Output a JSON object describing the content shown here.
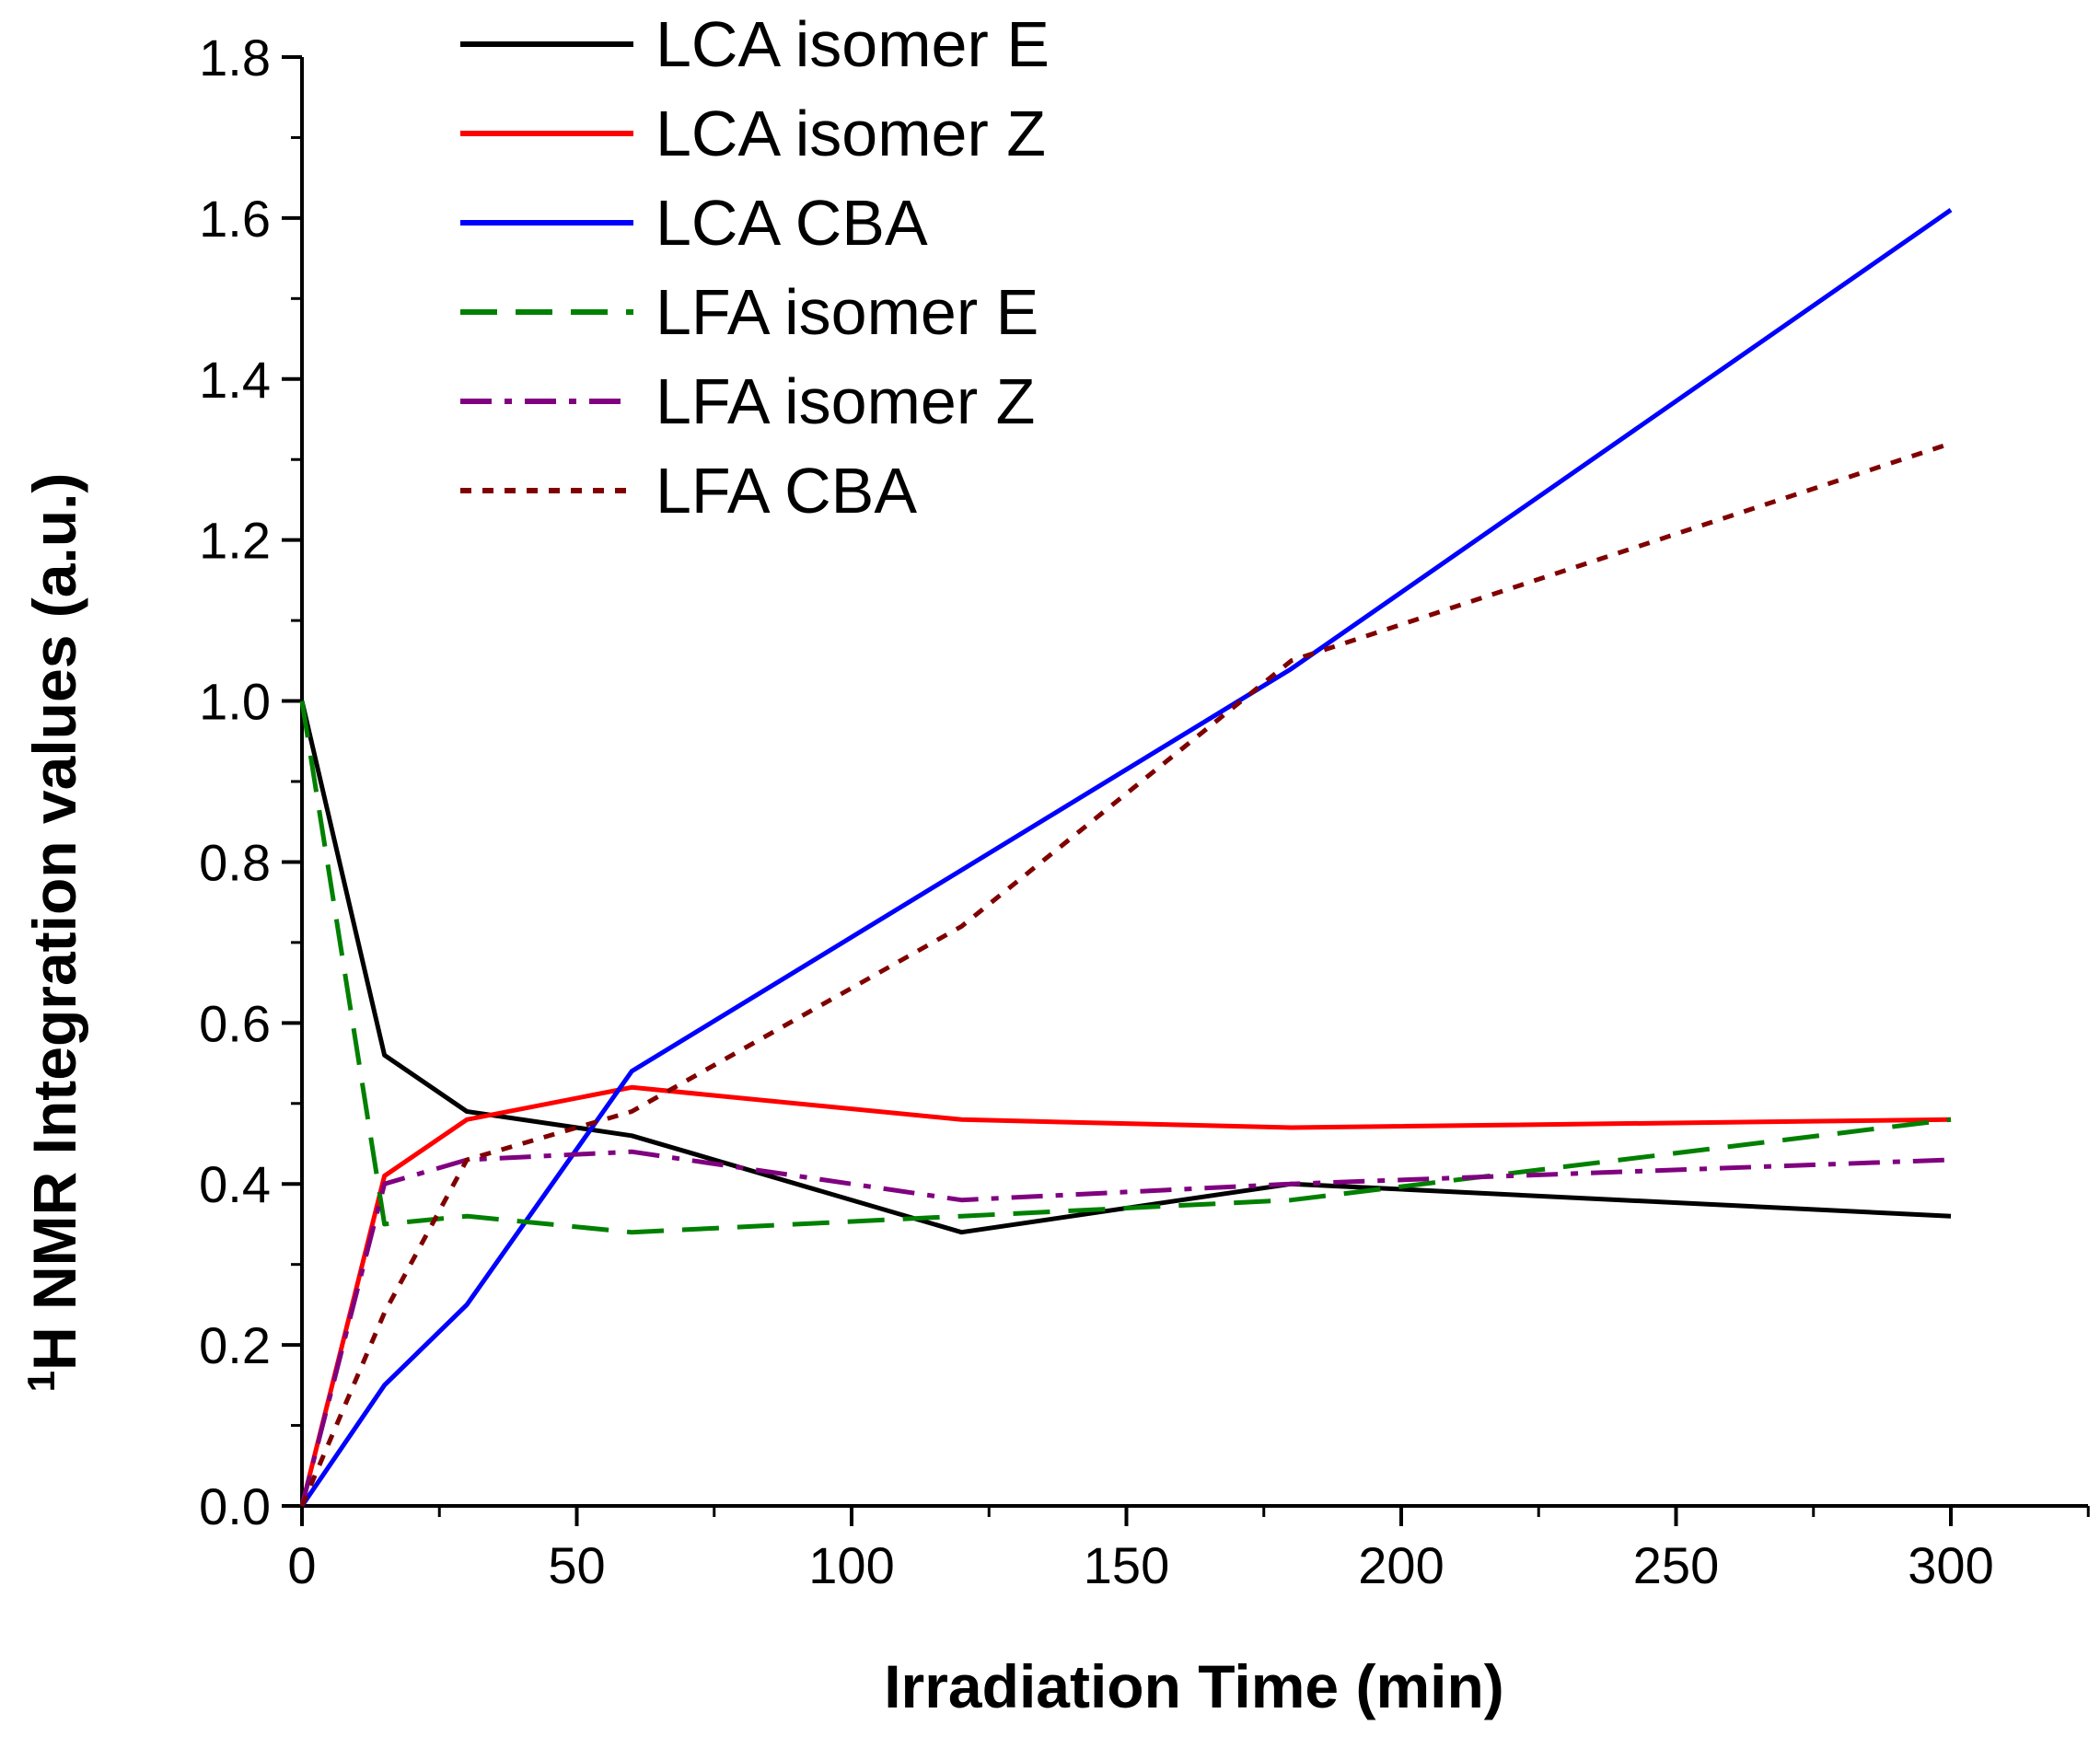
{
  "chart_data": {
    "type": "line",
    "xlabel": "Irradiation Time (min)",
    "ylabel_sup": "1",
    "ylabel": "H NMR Integration values (a.u.)",
    "xlim": [
      0,
      325
    ],
    "ylim": [
      0,
      1.8
    ],
    "x_ticks": [
      0,
      50,
      100,
      150,
      200,
      250,
      300
    ],
    "x_tick_labels": [
      "0",
      "50",
      "100",
      "150",
      "200",
      "250",
      "300"
    ],
    "y_ticks": [
      0.0,
      0.2,
      0.4,
      0.6,
      0.8,
      1.0,
      1.2,
      1.4,
      1.6,
      1.8
    ],
    "y_tick_labels": [
      "0.0",
      "0.2",
      "0.4",
      "0.6",
      "0.8",
      "1.0",
      "1.2",
      "1.4",
      "1.6",
      "1.8"
    ],
    "legend_position": "top-left",
    "grid": false,
    "x": [
      0,
      15,
      30,
      60,
      120,
      180,
      300
    ],
    "series": [
      {
        "name": "LCA isomer E",
        "color": "#000000",
        "dash": "solid",
        "values": [
          1.0,
          0.56,
          0.49,
          0.46,
          0.34,
          0.4,
          0.36
        ]
      },
      {
        "name": "LCA isomer Z",
        "color": "#ff0000",
        "dash": "solid",
        "values": [
          0.0,
          0.41,
          0.48,
          0.52,
          0.48,
          0.47,
          0.48
        ]
      },
      {
        "name": "LCA CBA",
        "color": "#0000ff",
        "dash": "solid",
        "values": [
          0.0,
          0.15,
          0.25,
          0.54,
          0.79,
          1.04,
          1.61
        ]
      },
      {
        "name": "LFA isomer E",
        "color": "#008000",
        "dash": "dashed",
        "values": [
          1.0,
          0.35,
          0.36,
          0.34,
          0.36,
          0.38,
          0.48
        ]
      },
      {
        "name": "LFA isomer Z",
        "color": "#800080",
        "dash": "dashdot",
        "values": [
          0.0,
          0.4,
          0.43,
          0.44,
          0.38,
          0.4,
          0.43
        ]
      },
      {
        "name": "LFA CBA",
        "color": "#800000",
        "dash": "dotted",
        "values": [
          0.0,
          0.24,
          0.43,
          0.49,
          0.72,
          1.05,
          1.32
        ]
      }
    ]
  }
}
